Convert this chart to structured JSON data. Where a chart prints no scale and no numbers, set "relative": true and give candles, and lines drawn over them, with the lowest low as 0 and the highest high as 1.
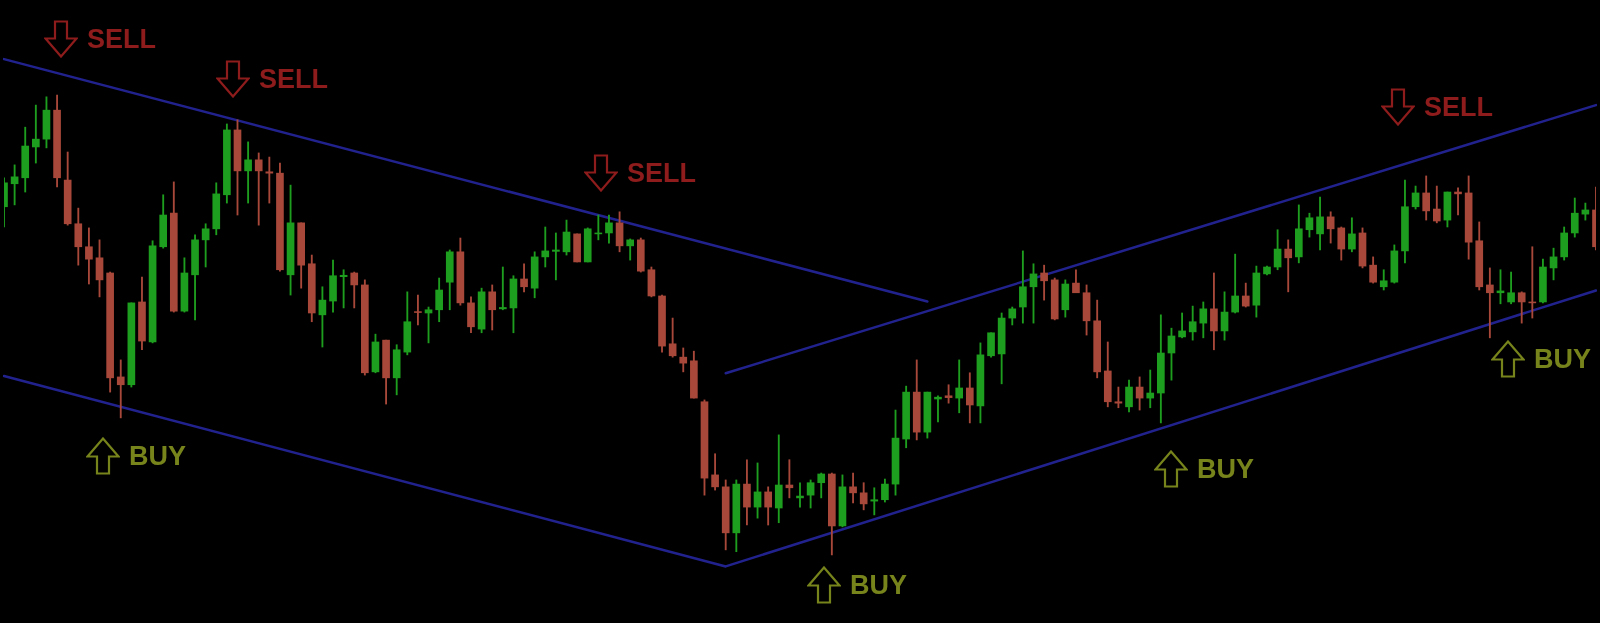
{
  "chart_data": {
    "type": "candlestick",
    "relative": true,
    "tick_labels": false,
    "marker": "none",
    "categories": [
      null,
      null,
      null,
      null,
      null,
      null,
      null,
      null,
      null,
      null,
      null,
      null,
      null,
      null,
      null,
      null,
      null,
      null,
      null,
      null,
      null,
      null,
      null,
      null,
      null,
      null,
      null,
      null,
      null,
      null,
      null,
      null,
      null,
      null,
      null,
      null,
      null,
      null,
      null,
      null,
      null,
      null,
      null,
      null,
      null,
      null,
      null,
      null,
      null,
      null,
      null,
      null,
      null,
      null,
      null,
      null,
      null,
      null,
      null,
      null,
      null,
      null,
      null,
      null,
      null,
      null,
      null,
      null,
      null,
      null,
      null,
      null,
      null,
      null,
      null,
      null,
      null,
      null,
      null,
      null,
      null,
      null,
      null,
      null,
      null,
      null,
      null,
      null,
      null,
      null,
      null,
      null,
      null,
      null,
      null,
      null,
      null,
      null,
      null,
      null,
      null,
      null,
      null,
      null,
      null,
      null,
      null,
      null,
      null,
      null,
      null,
      null,
      null,
      null,
      null,
      null,
      null,
      null,
      null,
      null,
      null,
      null,
      null,
      null,
      null,
      null,
      null,
      null,
      null,
      null,
      null,
      null,
      null,
      null,
      null,
      null,
      null,
      null,
      null,
      null,
      null,
      null,
      null,
      null,
      null,
      null,
      null,
      null,
      null,
      null,
      null
    ],
    "ohlc": [
      [
        0.757,
        0.82,
        0.713,
        0.809
      ],
      [
        0.807,
        0.848,
        0.761,
        0.822
      ],
      [
        0.82,
        0.93,
        0.789,
        0.889
      ],
      [
        0.887,
        0.978,
        0.852,
        0.904
      ],
      [
        0.904,
        0.996,
        0.885,
        0.967
      ],
      [
        0.967,
        1,
        0.8,
        0.82
      ],
      [
        0.815,
        0.876,
        0.717,
        0.72
      ],
      [
        0.72,
        0.754,
        0.63,
        0.67
      ],
      [
        0.67,
        0.711,
        0.589,
        0.643
      ],
      [
        0.646,
        0.685,
        0.561,
        0.598
      ],
      [
        0.613,
        0.615,
        0.354,
        0.385
      ],
      [
        0.387,
        0.424,
        0.298,
        0.37
      ],
      [
        0.37,
        0.548,
        0.365,
        0.548
      ],
      [
        0.55,
        0.604,
        0.446,
        0.465
      ],
      [
        0.463,
        0.683,
        0.461,
        0.672
      ],
      [
        0.67,
        0.783,
        0.667,
        0.739
      ],
      [
        0.743,
        0.811,
        0.528,
        0.53
      ],
      [
        0.53,
        0.646,
        0.528,
        0.613
      ],
      [
        0.609,
        0.696,
        0.511,
        0.685
      ],
      [
        0.685,
        0.72,
        0.626,
        0.709
      ],
      [
        0.709,
        0.809,
        0.696,
        0.785
      ],
      [
        0.783,
        0.937,
        0.765,
        0.924
      ],
      [
        0.924,
        0.946,
        0.739,
        0.835
      ],
      [
        0.835,
        0.898,
        0.765,
        0.859
      ],
      [
        0.859,
        0.874,
        0.717,
        0.835
      ],
      [
        0.833,
        0.865,
        0.765,
        0.83
      ],
      [
        0.83,
        0.852,
        0.617,
        0.62
      ],
      [
        0.609,
        0.804,
        0.565,
        0.722
      ],
      [
        0.722,
        0.722,
        0.58,
        0.63
      ],
      [
        0.633,
        0.652,
        0.507,
        0.526
      ],
      [
        0.522,
        0.583,
        0.452,
        0.554
      ],
      [
        0.552,
        0.641,
        0.528,
        0.607
      ],
      [
        0.605,
        0.62,
        0.537,
        0.608
      ],
      [
        0.613,
        0.615,
        0.537,
        0.587
      ],
      [
        0.587,
        0.598,
        0.391,
        0.396
      ],
      [
        0.398,
        0.48,
        0.396,
        0.463
      ],
      [
        0.467,
        0.467,
        0.328,
        0.385
      ],
      [
        0.385,
        0.457,
        0.348,
        0.446
      ],
      [
        0.441,
        0.572,
        0.435,
        0.507
      ],
      [
        0.529,
        0.565,
        0.5,
        0.527
      ],
      [
        0.526,
        0.539,
        0.461,
        0.533
      ],
      [
        0.533,
        0.602,
        0.507,
        0.576
      ],
      [
        0.593,
        0.663,
        0.533,
        0.659
      ],
      [
        0.659,
        0.689,
        0.543,
        0.548
      ],
      [
        0.548,
        0.561,
        0.483,
        0.496
      ],
      [
        0.491,
        0.58,
        0.483,
        0.572
      ],
      [
        0.572,
        0.587,
        0.489,
        0.533
      ],
      [
        0.535,
        0.626,
        0.533,
        0.538
      ],
      [
        0.537,
        0.607,
        0.483,
        0.6
      ],
      [
        0.6,
        0.633,
        0.572,
        0.583
      ],
      [
        0.58,
        0.659,
        0.559,
        0.648
      ],
      [
        0.648,
        0.713,
        0.626,
        0.661
      ],
      [
        0.66,
        0.7,
        0.598,
        0.663
      ],
      [
        0.659,
        0.728,
        0.652,
        0.702
      ],
      [
        0.698,
        0.698,
        0.637,
        0.637
      ],
      [
        0.637,
        0.711,
        0.637,
        0.709
      ],
      [
        0.698,
        0.739,
        0.685,
        0.7
      ],
      [
        0.7,
        0.739,
        0.678,
        0.722
      ],
      [
        0.722,
        0.746,
        0.659,
        0.672
      ],
      [
        0.672,
        0.687,
        0.641,
        0.685
      ],
      [
        0.685,
        0.689,
        0.615,
        0.617
      ],
      [
        0.62,
        0.626,
        0.561,
        0.563
      ],
      [
        0.563,
        0.565,
        0.441,
        0.454
      ],
      [
        0.459,
        0.515,
        0.43,
        0.433
      ],
      [
        0.43,
        0.45,
        0.398,
        0.417
      ],
      [
        0.422,
        0.443,
        0.341,
        0.341
      ],
      [
        0.333,
        0.337,
        0.13,
        0.167
      ],
      [
        0.174,
        0.22,
        0.141,
        0.148
      ],
      [
        0.148,
        0.163,
        0.011,
        0.048
      ],
      [
        0.048,
        0.163,
        0.007,
        0.154
      ],
      [
        0.154,
        0.207,
        0.065,
        0.104
      ],
      [
        0.104,
        0.2,
        0.08,
        0.137
      ],
      [
        0.137,
        0.148,
        0.065,
        0.104
      ],
      [
        0.102,
        0.261,
        0.07,
        0.152
      ],
      [
        0.152,
        0.207,
        0.124,
        0.146
      ],
      [
        0.124,
        0.157,
        0.104,
        0.128
      ],
      [
        0.13,
        0.163,
        0.102,
        0.157
      ],
      [
        0.157,
        0.178,
        0.124,
        0.176
      ],
      [
        0.176,
        0.178,
        0,
        0.063
      ],
      [
        0.063,
        0.174,
        0.061,
        0.148
      ],
      [
        0.148,
        0.178,
        0.113,
        0.135
      ],
      [
        0.135,
        0.157,
        0.098,
        0.111
      ],
      [
        0.117,
        0.146,
        0.087,
        0.12
      ],
      [
        0.12,
        0.165,
        0.115,
        0.154
      ],
      [
        0.154,
        0.315,
        0.13,
        0.254
      ],
      [
        0.252,
        0.367,
        0.233,
        0.354
      ],
      [
        0.354,
        0.424,
        0.25,
        0.267
      ],
      [
        0.267,
        0.354,
        0.254,
        0.354
      ],
      [
        0.339,
        0.346,
        0.289,
        0.343
      ],
      [
        0.346,
        0.37,
        0.33,
        0.342
      ],
      [
        0.341,
        0.424,
        0.309,
        0.363
      ],
      [
        0.363,
        0.396,
        0.287,
        0.326
      ],
      [
        0.324,
        0.461,
        0.287,
        0.435
      ],
      [
        0.433,
        0.483,
        0.43,
        0.483
      ],
      [
        0.437,
        0.526,
        0.372,
        0.515
      ],
      [
        0.515,
        0.539,
        0.5,
        0.535
      ],
      [
        0.539,
        0.661,
        0.504,
        0.583
      ],
      [
        0.583,
        0.633,
        0.504,
        0.611
      ],
      [
        0.613,
        0.63,
        0.554,
        0.596
      ],
      [
        0.598,
        0.602,
        0.511,
        0.513
      ],
      [
        0.533,
        0.598,
        0.517,
        0.589
      ],
      [
        0.591,
        0.62,
        0.57,
        0.57
      ],
      [
        0.57,
        0.587,
        0.478,
        0.509
      ],
      [
        0.509,
        0.554,
        0.385,
        0.398
      ],
      [
        0.4,
        0.463,
        0.322,
        0.333
      ],
      [
        0.333,
        0.365,
        0.32,
        0.33
      ],
      [
        0.322,
        0.38,
        0.311,
        0.365
      ],
      [
        0.365,
        0.387,
        0.315,
        0.341
      ],
      [
        0.341,
        0.402,
        0.32,
        0.352
      ],
      [
        0.352,
        0.522,
        0.287,
        0.439
      ],
      [
        0.439,
        0.493,
        0.38,
        0.476
      ],
      [
        0.474,
        0.526,
        0.472,
        0.487
      ],
      [
        0.485,
        0.541,
        0.467,
        0.507
      ],
      [
        0.504,
        0.55,
        0.472,
        0.535
      ],
      [
        0.535,
        0.613,
        0.446,
        0.487
      ],
      [
        0.487,
        0.572,
        0.467,
        0.528
      ],
      [
        0.528,
        0.654,
        0.526,
        0.563
      ],
      [
        0.563,
        0.591,
        0.539,
        0.541
      ],
      [
        0.543,
        0.628,
        0.517,
        0.613
      ],
      [
        0.611,
        0.628,
        0.609,
        0.626
      ],
      [
        0.626,
        0.707,
        0.62,
        0.665
      ],
      [
        0.665,
        0.685,
        0.572,
        0.646
      ],
      [
        0.648,
        0.761,
        0.635,
        0.709
      ],
      [
        0.707,
        0.743,
        0.691,
        0.733
      ],
      [
        0.698,
        0.778,
        0.663,
        0.735
      ],
      [
        0.735,
        0.746,
        0.678,
        0.709
      ],
      [
        0.711,
        0.713,
        0.641,
        0.665
      ],
      [
        0.665,
        0.733,
        0.659,
        0.698
      ],
      [
        0.7,
        0.711,
        0.624,
        0.628
      ],
      [
        0.63,
        0.648,
        0.591,
        0.593
      ],
      [
        0.583,
        0.62,
        0.576,
        0.596
      ],
      [
        0.593,
        0.674,
        0.591,
        0.661
      ],
      [
        0.661,
        0.815,
        0.635,
        0.757
      ],
      [
        0.757,
        0.802,
        0.752,
        0.787
      ],
      [
        0.787,
        0.824,
        0.728,
        0.748
      ],
      [
        0.752,
        0.802,
        0.722,
        0.726
      ],
      [
        0.728,
        0.789,
        0.713,
        0.789
      ],
      [
        0.789,
        0.798,
        0.739,
        0.785
      ],
      [
        0.787,
        0.824,
        0.643,
        0.68
      ],
      [
        0.683,
        0.724,
        0.576,
        0.583
      ],
      [
        0.587,
        0.624,
        0.472,
        0.57
      ],
      [
        0.57,
        0.62,
        0.546,
        0.574
      ],
      [
        0.55,
        0.615,
        0.546,
        0.57
      ],
      [
        0.57,
        0.572,
        0.504,
        0.55
      ],
      [
        0.55,
        0.67,
        0.515,
        0.548
      ],
      [
        0.55,
        0.643,
        0.548,
        0.626
      ],
      [
        0.624,
        0.667,
        0.598,
        0.648
      ],
      [
        0.648,
        0.713,
        0.641,
        0.7
      ],
      [
        0.7,
        0.776,
        0.691,
        0.743
      ],
      [
        0.741,
        0.765,
        0.728,
        0.75
      ],
      [
        0.75,
        0.8,
        0.663,
        0.67
      ]
    ],
    "colors": [
      "#1e9e1e",
      "#1e9e1e",
      "#1e9e1e",
      "#1e9e1e",
      "#1e9e1e",
      "#a8483a",
      "#a8483a",
      "#a8483a",
      "#a8483a",
      "#a8483a",
      "#a8483a",
      "#a8483a",
      "#1e9e1e",
      "#a8483a",
      "#1e9e1e",
      "#1e9e1e",
      "#a8483a",
      "#1e9e1e",
      "#1e9e1e",
      "#1e9e1e",
      "#1e9e1e",
      "#1e9e1e",
      "#a8483a",
      "#1e9e1e",
      "#a8483a",
      "#a8483a",
      "#a8483a",
      "#1e9e1e",
      "#a8483a",
      "#a8483a",
      "#1e9e1e",
      "#1e9e1e",
      "#1e9e1e",
      "#a8483a",
      "#a8483a",
      "#1e9e1e",
      "#a8483a",
      "#1e9e1e",
      "#1e9e1e",
      "#a8483a",
      "#1e9e1e",
      "#1e9e1e",
      "#1e9e1e",
      "#a8483a",
      "#a8483a",
      "#1e9e1e",
      "#a8483a",
      "#1e9e1e",
      "#1e9e1e",
      "#a8483a",
      "#1e9e1e",
      "#1e9e1e",
      "#1e9e1e",
      "#1e9e1e",
      "#a8483a",
      "#1e9e1e",
      "#1e9e1e",
      "#1e9e1e",
      "#a8483a",
      "#1e9e1e",
      "#a8483a",
      "#a8483a",
      "#a8483a",
      "#a8483a",
      "#a8483a",
      "#a8483a",
      "#a8483a",
      "#a8483a",
      "#a8483a",
      "#1e9e1e",
      "#a8483a",
      "#1e9e1e",
      "#a8483a",
      "#1e9e1e",
      "#a8483a",
      "#1e9e1e",
      "#1e9e1e",
      "#1e9e1e",
      "#a8483a",
      "#1e9e1e",
      "#a8483a",
      "#a8483a",
      "#1e9e1e",
      "#1e9e1e",
      "#1e9e1e",
      "#1e9e1e",
      "#a8483a",
      "#1e9e1e",
      "#1e9e1e",
      "#a8483a",
      "#1e9e1e",
      "#a8483a",
      "#1e9e1e",
      "#1e9e1e",
      "#1e9e1e",
      "#1e9e1e",
      "#1e9e1e",
      "#1e9e1e",
      "#a8483a",
      "#a8483a",
      "#1e9e1e",
      "#a8483a",
      "#a8483a",
      "#a8483a",
      "#a8483a",
      "#a8483a",
      "#1e9e1e",
      "#a8483a",
      "#1e9e1e",
      "#1e9e1e",
      "#1e9e1e",
      "#1e9e1e",
      "#1e9e1e",
      "#1e9e1e",
      "#a8483a",
      "#1e9e1e",
      "#1e9e1e",
      "#a8483a",
      "#1e9e1e",
      "#1e9e1e",
      "#1e9e1e",
      "#a8483a",
      "#1e9e1e",
      "#1e9e1e",
      "#1e9e1e",
      "#a8483a",
      "#a8483a",
      "#1e9e1e",
      "#a8483a",
      "#a8483a",
      "#1e9e1e",
      "#1e9e1e",
      "#1e9e1e",
      "#1e9e1e",
      "#a8483a",
      "#a8483a",
      "#1e9e1e",
      "#a8483a",
      "#a8483a",
      "#a8483a",
      "#a8483a",
      "#1e9e1e",
      "#1e9e1e",
      "#a8483a",
      "#a8483a",
      "#1e9e1e",
      "#1e9e1e",
      "#1e9e1e",
      "#1e9e1e",
      "#1e9e1e",
      "#a8483a"
    ],
    "series": [
      {
        "type": "line",
        "color": "#22228e",
        "values": [
          1.078,
          null,
          null,
          null,
          null,
          null,
          null,
          null,
          null,
          null,
          null,
          null,
          null,
          null,
          null,
          null,
          null,
          null,
          null,
          null,
          null,
          null,
          null,
          null,
          null,
          null,
          null,
          null,
          null,
          null,
          null,
          null,
          null,
          null,
          null,
          null,
          null,
          null,
          null,
          null,
          null,
          null,
          null,
          null,
          null,
          null,
          null,
          null,
          null,
          null,
          null,
          null,
          null,
          null,
          null,
          null,
          null,
          null,
          null,
          null,
          null,
          null,
          null,
          null,
          null,
          null,
          null,
          null,
          null,
          null,
          null,
          null,
          null,
          null,
          null,
          null,
          null,
          null,
          null,
          null,
          null,
          null,
          null,
          null,
          null,
          null,
          null,
          0.551,
          null,
          null,
          null,
          null,
          null,
          null,
          null,
          null,
          null,
          null,
          null,
          null,
          null,
          null,
          null,
          null,
          null,
          null,
          null,
          null,
          null,
          null,
          null,
          null,
          null,
          null,
          null,
          null,
          null,
          null,
          null,
          null,
          null,
          null,
          null,
          null,
          null,
          null,
          null,
          null,
          null,
          null,
          null,
          null,
          null,
          null,
          null,
          null,
          null,
          null,
          null,
          null,
          null,
          null,
          null,
          null,
          null,
          null,
          null,
          null,
          null,
          null,
          null
        ]
      },
      {
        "type": "line",
        "color": "#22228e",
        "values": [
          0.389,
          null,
          null,
          null,
          null,
          null,
          null,
          null,
          null,
          null,
          null,
          null,
          null,
          null,
          null,
          null,
          null,
          null,
          null,
          null,
          null,
          null,
          null,
          null,
          null,
          null,
          null,
          null,
          null,
          null,
          null,
          null,
          null,
          null,
          null,
          null,
          null,
          null,
          null,
          null,
          null,
          null,
          null,
          null,
          null,
          null,
          null,
          null,
          null,
          null,
          null,
          null,
          null,
          null,
          null,
          null,
          null,
          null,
          null,
          null,
          null,
          null,
          null,
          null,
          null,
          null,
          null,
          null,
          -0.025,
          null,
          null,
          null,
          null,
          null,
          null,
          null,
          null,
          null,
          null,
          null,
          null,
          null,
          null,
          null,
          null,
          null,
          null,
          null,
          null,
          null,
          null,
          null,
          null,
          null,
          null,
          null,
          null,
          null,
          null,
          null,
          null,
          null,
          null,
          null,
          null,
          null,
          null,
          null,
          null,
          null,
          null,
          null,
          null,
          null,
          null,
          null,
          null,
          null,
          null,
          null,
          null,
          null,
          null,
          null,
          null,
          null,
          null,
          null,
          null,
          null,
          null,
          null,
          null,
          null,
          null,
          null,
          null,
          null,
          null,
          null,
          null,
          null,
          null,
          null,
          null,
          null,
          null,
          null,
          null,
          null,
          0.575
        ]
      },
      {
        "type": "line",
        "color": "#22228e",
        "values": [
          null,
          null,
          null,
          null,
          null,
          null,
          null,
          null,
          null,
          null,
          null,
          null,
          null,
          null,
          null,
          null,
          null,
          null,
          null,
          null,
          null,
          null,
          null,
          null,
          null,
          null,
          null,
          null,
          null,
          null,
          null,
          null,
          null,
          null,
          null,
          null,
          null,
          null,
          null,
          null,
          null,
          null,
          null,
          null,
          null,
          null,
          null,
          null,
          null,
          null,
          null,
          null,
          null,
          null,
          null,
          null,
          null,
          null,
          null,
          null,
          null,
          null,
          null,
          null,
          null,
          null,
          null,
          null,
          0.395,
          null,
          null,
          null,
          null,
          null,
          null,
          null,
          null,
          null,
          null,
          null,
          null,
          null,
          null,
          null,
          null,
          null,
          null,
          null,
          null,
          null,
          null,
          null,
          null,
          null,
          null,
          null,
          null,
          null,
          null,
          null,
          null,
          null,
          null,
          null,
          null,
          null,
          null,
          null,
          null,
          null,
          null,
          null,
          null,
          null,
          null,
          null,
          null,
          null,
          null,
          null,
          null,
          null,
          null,
          null,
          null,
          null,
          null,
          null,
          null,
          null,
          null,
          null,
          null,
          null,
          null,
          null,
          null,
          null,
          null,
          null,
          null,
          null,
          null,
          null,
          null,
          null,
          null,
          null,
          null,
          null,
          0.978
        ]
      }
    ],
    "annotations": [
      "SELL",
      "BUY",
      "SELL",
      "SELL",
      "BUY",
      "BUY",
      "SELL",
      "BUY"
    ]
  }
}
